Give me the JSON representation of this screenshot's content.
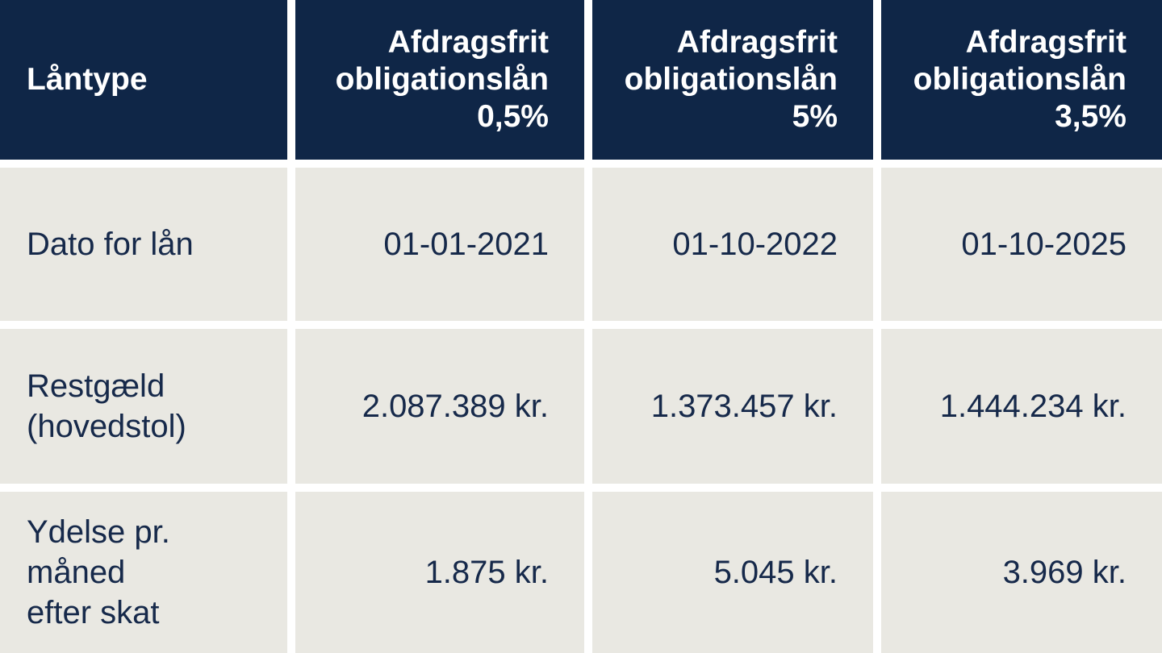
{
  "colors": {
    "navy": "#0f2647",
    "cell-bg": "#e9e8e2",
    "text-navy": "#16294a",
    "gap": "#ffffff"
  },
  "table": {
    "header_col": "Låntype",
    "product_headers": [
      "Afdragsfrit\nobligationslån\n0,5%",
      "Afdragsfrit\nobligationslån\n5%",
      "Afdragsfrit\nobligationslån\n3,5%"
    ],
    "rows": [
      {
        "label": "Dato for lån",
        "values": [
          "01-01-2021",
          "01-10-2022",
          "01-10-2025"
        ]
      },
      {
        "label": "Restgæld\n(hovedstol)",
        "values": [
          "2.087.389 kr.",
          "1.373.457 kr.",
          "1.444.234 kr."
        ]
      },
      {
        "label": "Ydelse pr. måned\nefter skat",
        "values": [
          "1.875 kr.",
          "5.045 kr.",
          "3.969 kr."
        ]
      }
    ]
  },
  "chart_data": {
    "type": "table",
    "columns": [
      "Låntype",
      "Afdragsfrit obligationslån 0,5%",
      "Afdragsfrit obligationslån 5%",
      "Afdragsfrit obligationslån 3,5%"
    ],
    "rows": [
      [
        "Dato for lån",
        "01-01-2021",
        "01-10-2022",
        "01-10-2025"
      ],
      [
        "Restgæld (hovedstol)",
        "2.087.389 kr.",
        "1.373.457 kr.",
        "1.444.234 kr."
      ],
      [
        "Ydelse pr. måned efter skat",
        "1.875 kr.",
        "5.045 kr.",
        "3.969 kr."
      ]
    ]
  }
}
